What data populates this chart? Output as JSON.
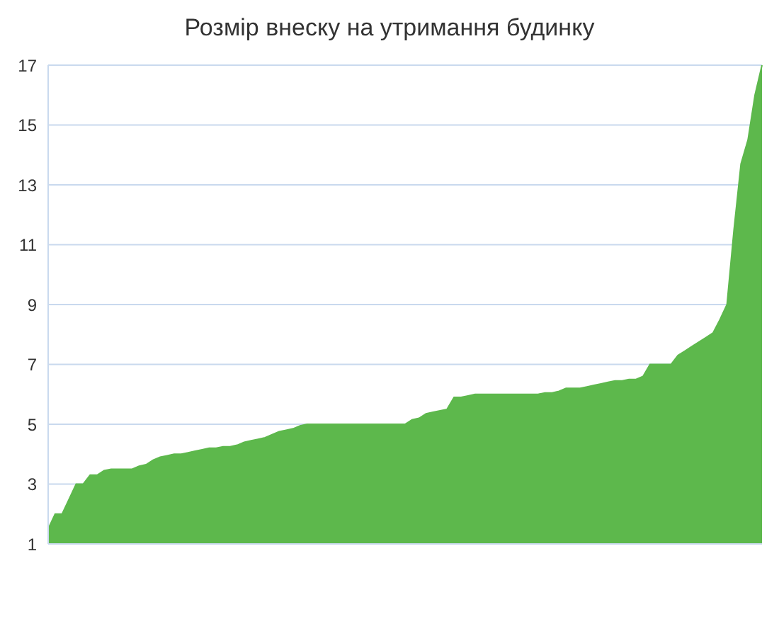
{
  "chart_data": {
    "type": "area",
    "title": "Розмір внеску на утримання будинку",
    "categories": [
      null,
      null,
      null,
      null,
      null,
      null,
      null,
      null,
      null,
      null,
      null,
      null,
      null,
      null,
      null,
      null,
      null,
      null,
      null,
      null,
      null,
      null,
      null,
      null,
      null,
      null,
      null,
      null,
      null,
      null,
      null,
      null,
      null,
      null,
      null,
      null,
      null,
      null,
      null,
      null,
      null,
      null,
      null,
      null,
      null,
      null,
      null,
      null,
      null,
      null,
      null,
      null,
      null,
      null,
      null,
      null,
      null,
      null,
      null,
      null,
      null,
      null,
      null,
      null,
      null,
      null,
      null,
      null,
      null,
      null,
      null,
      null,
      null,
      null,
      null,
      null,
      null,
      null,
      null,
      null,
      null,
      null,
      null,
      null,
      null,
      null,
      null,
      null,
      null,
      null,
      null,
      null,
      null,
      null,
      null,
      null,
      null,
      null,
      null,
      null,
      null,
      null,
      null
    ],
    "series": [
      {
        "color": "#5db84c",
        "values": [
          1.5,
          2,
          2,
          2.5,
          3,
          3,
          3.3,
          3.3,
          3.45,
          3.5,
          3.5,
          3.5,
          3.5,
          3.6,
          3.65,
          3.8,
          3.9,
          3.95,
          4,
          4,
          4.05,
          4.1,
          4.15,
          4.2,
          4.2,
          4.25,
          4.25,
          4.3,
          4.4,
          4.45,
          4.5,
          4.55,
          4.65,
          4.75,
          4.8,
          4.85,
          4.95,
          5,
          5,
          5,
          5,
          5,
          5,
          5,
          5,
          5,
          5,
          5,
          5,
          5,
          5,
          5,
          5.15,
          5.2,
          5.35,
          5.4,
          5.45,
          5.5,
          5.9,
          5.9,
          5.95,
          6,
          6,
          6,
          6,
          6,
          6,
          6,
          6,
          6,
          6,
          6.05,
          6.05,
          6.1,
          6.2,
          6.2,
          6.2,
          6.25,
          6.3,
          6.35,
          6.4,
          6.45,
          6.45,
          6.5,
          6.5,
          6.6,
          7,
          7,
          7,
          7,
          7.3,
          7.45,
          7.6,
          7.75,
          7.9,
          8.05,
          8.5,
          9,
          11.5,
          13.7,
          14.5,
          16,
          17
        ]
      }
    ],
    "ylim": [
      1,
      17
    ],
    "yticks": [
      1,
      3,
      5,
      7,
      9,
      11,
      13,
      15,
      17
    ],
    "grid": "y",
    "legend": false
  }
}
